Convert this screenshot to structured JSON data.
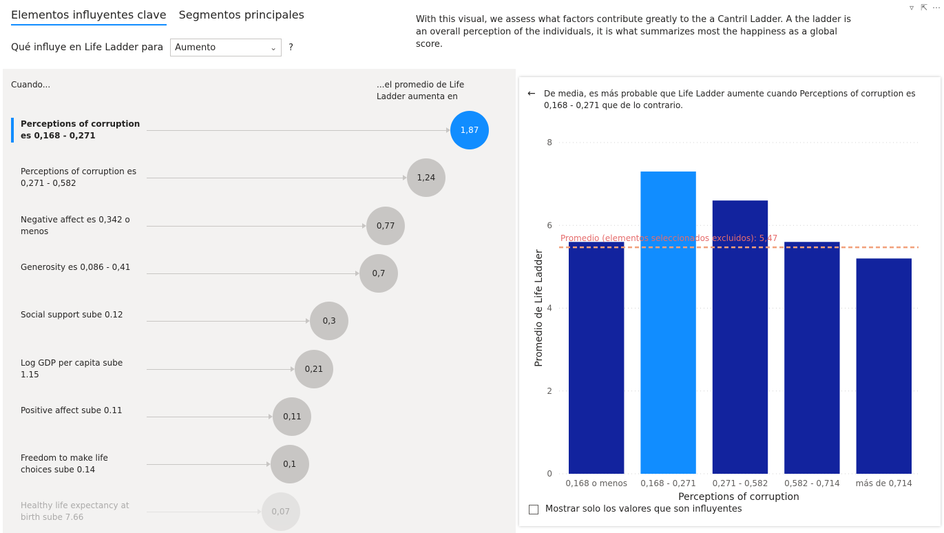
{
  "tabs": [
    {
      "label": "Elementos influyentes clave"
    },
    {
      "label": "Segmentos principales"
    }
  ],
  "description": "With this visual, we assess what factors contribute greatly to the a Cantril Ladder. A the ladder is an overall perception of the individuals, it is what summarizes most the happiness as a global score.",
  "filter": {
    "label": "Qué influye en Life Ladder para",
    "selected": "Aumento",
    "help": "?"
  },
  "influencers": {
    "col_left": "Cuando...",
    "col_right": "...el promedio de Life Ladder aumenta en",
    "rows": [
      {
        "label": "Perceptions of corruption es 0,168 - 0,271",
        "value": "1,87",
        "num": 1.87,
        "selected": true
      },
      {
        "label": "Perceptions of corruption es 0,271 - 0,582",
        "value": "1,24",
        "num": 1.24,
        "selected": false
      },
      {
        "label": "Negative affect es 0,342 o menos",
        "value": "0,77",
        "num": 0.77,
        "selected": false
      },
      {
        "label": "Generosity es 0,086 - 0,41",
        "value": "0,7",
        "num": 0.7,
        "selected": false
      },
      {
        "label": "Social support sube 0.12",
        "value": "0,3",
        "num": 0.3,
        "selected": false
      },
      {
        "label": "Log GDP per capita sube 1.15",
        "value": "0,21",
        "num": 0.21,
        "selected": false
      },
      {
        "label": "Positive affect sube 0.11",
        "value": "0,11",
        "num": 0.11,
        "selected": false
      },
      {
        "label": "Freedom to make life choices sube 0.14",
        "value": "0,1",
        "num": 0.1,
        "selected": false
      },
      {
        "label": "Healthy life expectancy at birth sube 7.66",
        "value": "0,07",
        "num": 0.07,
        "selected": false
      }
    ]
  },
  "detail": {
    "back_icon": "arrow-left-icon",
    "explanation": "De media, es más probable que Life Ladder aumente cuando Perceptions of corruption es 0,168 - 0,271 que de lo contrario.",
    "checkbox_label": "Mostrar solo los valores que son influyentes"
  },
  "chart_data": {
    "type": "bar",
    "categories": [
      "0,168 o menos",
      "0,168 - 0,271",
      "0,271 - 0,582",
      "0,582 - 0,714",
      "más de 0,714"
    ],
    "values": [
      5.6,
      7.3,
      6.6,
      5.6,
      5.2
    ],
    "highlighted_index": 1,
    "xlabel": "Perceptions of corruption",
    "ylabel": "Promedio de Life Ladder",
    "ylim": [
      0,
      8
    ],
    "yticks": [
      0,
      2,
      4,
      6,
      8
    ],
    "reference_line": {
      "label": "Promedio (elementos seleccionados excluidos): 5,47",
      "value": 5.47
    },
    "colors": {
      "bar": "#12239e",
      "highlight": "#118dff",
      "reference": "#f2a07b",
      "reference_text": "#e66c6c"
    },
    "grid": true
  }
}
